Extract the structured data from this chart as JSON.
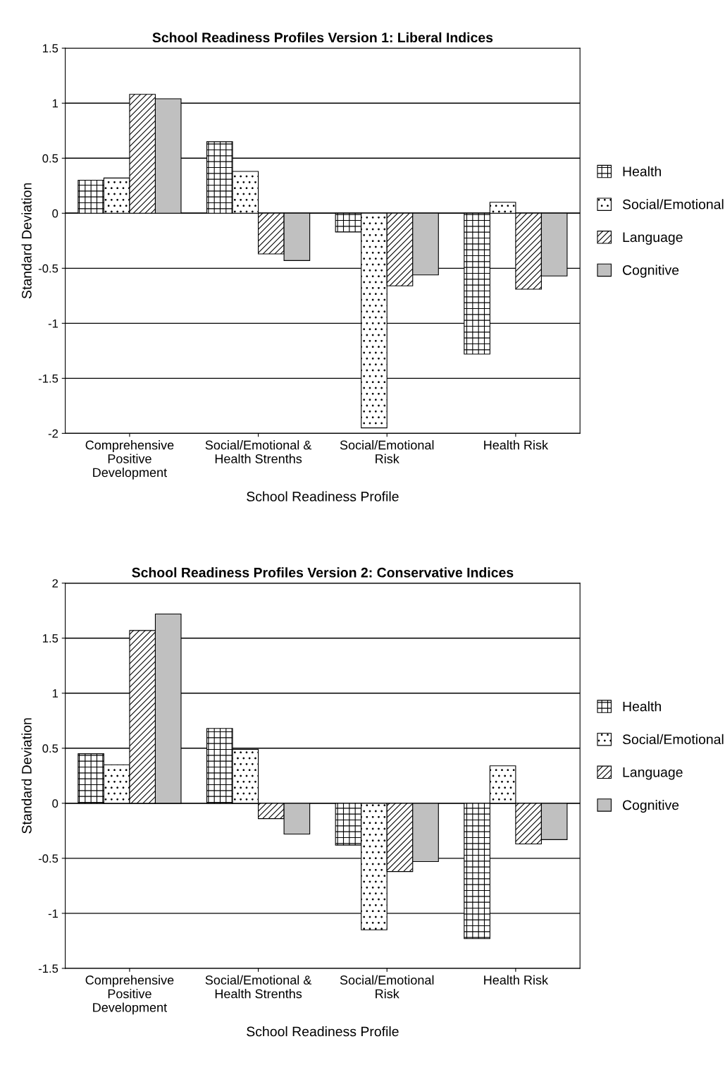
{
  "chart_data": [
    {
      "type": "bar",
      "title": "School Readiness Profiles Version 1: Liberal Indices",
      "xlabel": "School Readiness Profile",
      "ylabel": "Standard Deviation",
      "categories": [
        "Comprehensive\nPositive\nDevelopment",
        "Social/Emotional &\nHealth Strenths",
        "Social/Emotional\nRisk",
        "Health Risk"
      ],
      "series": [
        {
          "name": "Health",
          "color": "#000000",
          "values": [
            0.3,
            0.65,
            -0.17,
            -1.28
          ]
        },
        {
          "name": "Social/Emotional",
          "color": "#000000",
          "values": [
            0.32,
            0.38,
            -1.95,
            0.1
          ]
        },
        {
          "name": "Language",
          "color": "#000000",
          "values": [
            1.08,
            -0.37,
            -0.66,
            -0.69
          ]
        },
        {
          "name": "Cognitive",
          "color": "#c0c0c0",
          "values": [
            1.04,
            -0.43,
            -0.56,
            -0.57
          ]
        }
      ],
      "ylim": [
        -2,
        1.5
      ],
      "yticks": [
        -2,
        -1.5,
        -1,
        -0.5,
        0,
        0.5,
        1,
        1.5
      ],
      "grid": "y",
      "legend": "right"
    },
    {
      "type": "bar",
      "title": "School Readiness Profiles Version 2: Conservative Indices",
      "xlabel": "School Readiness Profile",
      "ylabel": "Standard Deviation",
      "categories": [
        "Comprehensive\nPositive\nDevelopment",
        "Social/Emotional &\nHealth Strenths",
        "Social/Emotional\nRisk",
        "Health Risk"
      ],
      "series": [
        {
          "name": "Health",
          "color": "#000000",
          "values": [
            0.45,
            0.68,
            -0.38,
            -1.23
          ]
        },
        {
          "name": "Social/Emotional",
          "color": "#000000",
          "values": [
            0.35,
            0.49,
            -1.15,
            0.34
          ]
        },
        {
          "name": "Language",
          "color": "#000000",
          "values": [
            1.57,
            -0.14,
            -0.62,
            -0.37
          ]
        },
        {
          "name": "Cognitive",
          "color": "#c0c0c0",
          "values": [
            1.72,
            -0.28,
            -0.53,
            -0.33
          ]
        }
      ],
      "ylim": [
        -1.5,
        2
      ],
      "yticks": [
        -1.5,
        -1,
        -0.5,
        0,
        0.5,
        1,
        1.5,
        2
      ],
      "grid": "y",
      "legend": "right"
    }
  ]
}
